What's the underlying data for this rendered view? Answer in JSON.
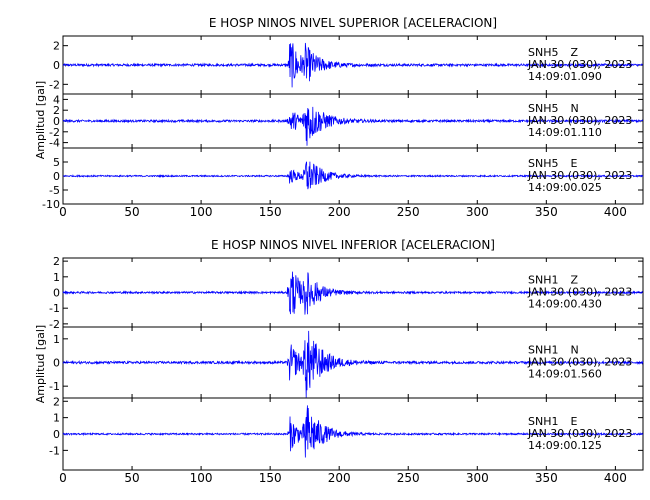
{
  "chart_data": [
    {
      "type": "line",
      "title": "E HOSP NINOS NIVEL SUPERIOR [ACELERACION]",
      "ylabel": "Amplitud [gal]",
      "xlim": [
        0,
        420
      ],
      "x_ticks": [
        0,
        50,
        100,
        150,
        200,
        250,
        300,
        350,
        400
      ],
      "traces": [
        {
          "station": "SNH5",
          "component": "Z",
          "date": "JAN 30 (030), 2023",
          "time": "14:09:01.090",
          "ylim": [
            -3,
            3
          ],
          "yticks": [
            -2,
            0,
            2
          ],
          "peak": 2.9,
          "noise": 0.12,
          "events": [
            {
              "t": 164,
              "a": 1.0,
              "decay": 8
            },
            {
              "t": 175,
              "a": 0.55,
              "decay": 10
            }
          ]
        },
        {
          "station": "SNH5",
          "component": "N",
          "date": "JAN 30 (030), 2023",
          "time": "14:09:01.110",
          "ylim": [
            -5,
            5
          ],
          "yticks": [
            -4,
            -2,
            0,
            2,
            4
          ],
          "peak": 4.6,
          "noise": 0.2,
          "events": [
            {
              "t": 164,
              "a": 0.5,
              "decay": 9
            },
            {
              "t": 175,
              "a": 1.0,
              "decay": 11
            }
          ]
        },
        {
          "station": "SNH5",
          "component": "E",
          "date": "JAN 30 (030), 2023",
          "time": "14:09:00.025",
          "ylim": [
            -10,
            10
          ],
          "yticks": [
            -10,
            -5,
            0,
            5
          ],
          "peak": 7.5,
          "noise": 0.25,
          "events": [
            {
              "t": 164,
              "a": 0.35,
              "decay": 9
            },
            {
              "t": 175,
              "a": 1.0,
              "decay": 10
            }
          ]
        }
      ]
    },
    {
      "type": "line",
      "title": "E HOSP NINOS NIVEL INFERIOR [ACELERACION]",
      "ylabel": "Amplitud [gal]",
      "xlim": [
        0,
        420
      ],
      "x_ticks": [
        0,
        50,
        100,
        150,
        200,
        250,
        300,
        350,
        400
      ],
      "traces": [
        {
          "station": "SNH1",
          "component": "Z",
          "date": "JAN 30 (030), 2023",
          "time": "14:09:00.430",
          "ylim": [
            -2.2,
            2.2
          ],
          "yticks": [
            -2,
            -1,
            0,
            1,
            2
          ],
          "peak": 2.2,
          "noise": 0.06,
          "events": [
            {
              "t": 164,
              "a": 1.0,
              "decay": 7
            },
            {
              "t": 175,
              "a": 0.55,
              "decay": 10
            }
          ]
        },
        {
          "station": "SNH1",
          "component": "N",
          "date": "JAN 30 (030), 2023",
          "time": "14:09:01.560",
          "ylim": [
            -1.5,
            1.5
          ],
          "yticks": [
            -1,
            0,
            1
          ],
          "peak": 1.5,
          "noise": 0.05,
          "events": [
            {
              "t": 164,
              "a": 0.55,
              "decay": 9
            },
            {
              "t": 175,
              "a": 1.0,
              "decay": 11
            }
          ]
        },
        {
          "station": "SNH1",
          "component": "E",
          "date": "JAN 30 (030), 2023",
          "time": "14:09:00.125",
          "ylim": [
            -2.2,
            2.2
          ],
          "yticks": [
            -1,
            0,
            1,
            2
          ],
          "peak": 2.0,
          "noise": 0.05,
          "events": [
            {
              "t": 164,
              "a": 0.55,
              "decay": 8
            },
            {
              "t": 175,
              "a": 1.0,
              "decay": 10
            }
          ]
        }
      ]
    }
  ],
  "colors": {
    "trace": "#0000ff",
    "axis": "#000000"
  }
}
